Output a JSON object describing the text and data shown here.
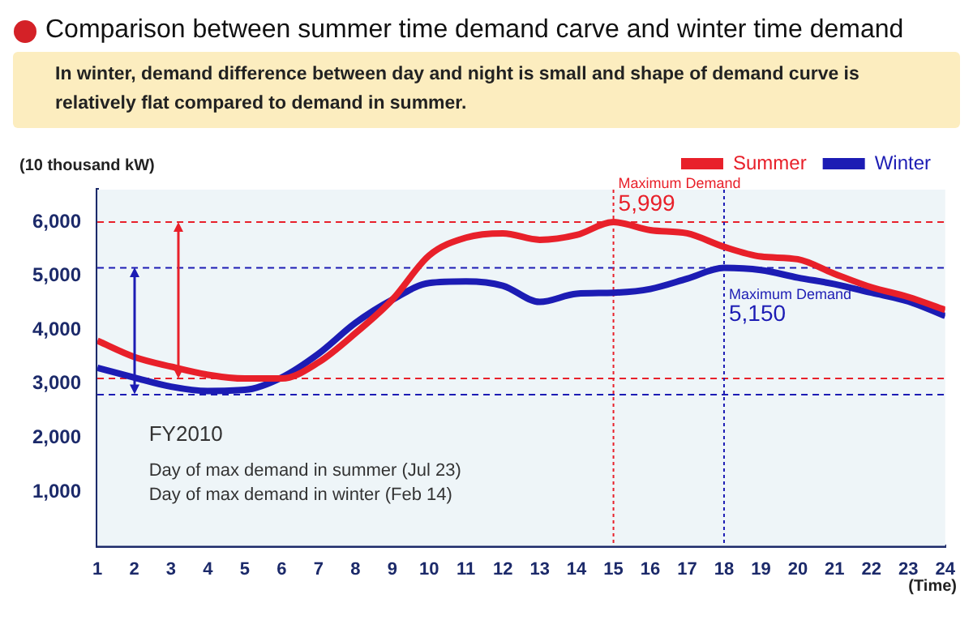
{
  "chart_data": {
    "type": "line",
    "title": "Comparison between summer time demand carve and winter time demand",
    "subtitle": "In winter, demand difference between day and night is small and shape of demand curve is relatively flat compared to demand in summer.",
    "ylabel": "(10 thousand kW)",
    "xlabel": "(Time)",
    "x": [
      1,
      2,
      3,
      4,
      5,
      6,
      7,
      8,
      9,
      10,
      11,
      12,
      13,
      14,
      15,
      16,
      17,
      18,
      19,
      20,
      21,
      22,
      23,
      24
    ],
    "series": [
      {
        "name": "Summer",
        "color": "#e8202a",
        "values": [
          3800,
          3500,
          3320,
          3170,
          3100,
          3100,
          3400,
          3940,
          4560,
          5380,
          5710,
          5790,
          5670,
          5760,
          5999,
          5850,
          5790,
          5540,
          5360,
          5310,
          5040,
          4790,
          4610,
          4370
        ]
      },
      {
        "name": "Winter",
        "color": "#1c1cb4",
        "values": [
          3300,
          3120,
          2950,
          2870,
          2890,
          3120,
          3560,
          4130,
          4560,
          4870,
          4900,
          4820,
          4520,
          4670,
          4690,
          4760,
          4950,
          5150,
          5110,
          4970,
          4850,
          4690,
          4530,
          4260
        ]
      }
    ],
    "xlim": [
      1,
      24
    ],
    "xticks": [
      1,
      2,
      3,
      4,
      5,
      6,
      7,
      8,
      9,
      10,
      11,
      12,
      13,
      14,
      15,
      16,
      17,
      18,
      19,
      20,
      21,
      22,
      23,
      24
    ],
    "ylim": [
      0,
      6600
    ],
    "yticks": [
      {
        "value": 1000,
        "label": "1,000"
      },
      {
        "value": 2000,
        "label": "2,000"
      },
      {
        "value": 3000,
        "label": "3,000"
      },
      {
        "value": 4000,
        "label": "4,000"
      },
      {
        "value": 5000,
        "label": "5,000"
      },
      {
        "value": 6000,
        "label": "6,000"
      }
    ],
    "ref_lines": [
      {
        "axis": "y",
        "value": 5999,
        "color": "#e8202a",
        "line_style": "dashed"
      },
      {
        "axis": "y",
        "value": 5150,
        "color": "#1c1cb4",
        "line_style": "dashed"
      },
      {
        "axis": "y",
        "value": 3100,
        "color": "#e8202a",
        "line_style": "dashed"
      },
      {
        "axis": "y",
        "value": 2800,
        "color": "#1c1cb4",
        "line_style": "dashed"
      },
      {
        "axis": "x",
        "value": 15,
        "color": "#e8202a",
        "line_style": "dotted"
      },
      {
        "axis": "x",
        "value": 18,
        "color": "#1c1cb4",
        "line_style": "dotted"
      }
    ],
    "annotations": [
      {
        "text": "Maximum Demand\n5,999",
        "x": 15,
        "y": 5999
      },
      {
        "text": "Maximum Demand\n5,150",
        "x": 18,
        "y": 5150
      },
      "FY2010",
      "Day of max demand in summer (Jul 23)",
      "Day of max demand in winter (Feb 14)"
    ],
    "grid": false,
    "legend": "top right",
    "marker": "none",
    "line_style": "solid"
  }
}
